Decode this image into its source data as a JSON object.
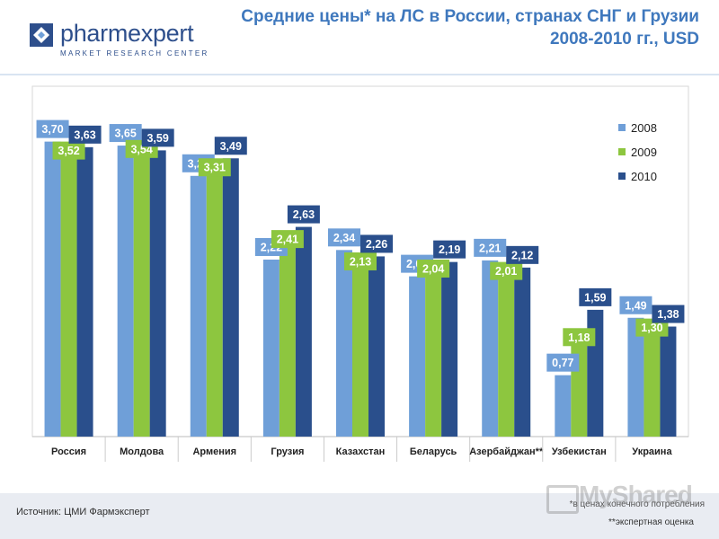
{
  "logo": {
    "name": "pharmexpert",
    "tagline": "MARKET RESEARCH CENTER"
  },
  "title": "Средние цены* на ЛС в России, странах СНГ и Грузии 2008-2010 гг., USD",
  "chart_data": {
    "type": "bar",
    "categories": [
      "Россия",
      "Молдова",
      "Армения",
      "Грузия",
      "Казахстан",
      "Беларусь",
      "Азербайджан**",
      "Узбекистан",
      "Украина"
    ],
    "series": [
      {
        "name": "2008",
        "color": "#6f9fd8",
        "values": [
          3.7,
          3.65,
          3.27,
          2.22,
          2.34,
          2.01,
          2.21,
          0.77,
          1.49
        ],
        "labels": [
          "3,70",
          "3,65",
          "3,27",
          "2,22",
          "2,34",
          "2,01",
          "2,21",
          "0,77",
          "1,49"
        ]
      },
      {
        "name": "2009",
        "color": "#8dc63f",
        "values": [
          3.52,
          3.54,
          3.31,
          2.41,
          2.13,
          2.04,
          2.01,
          1.18,
          1.3
        ],
        "labels": [
          "3,52",
          "3,54",
          "3,31",
          "2,41",
          "2,13",
          "2,04",
          "2,01",
          "1,18",
          "1,30"
        ]
      },
      {
        "name": "2010",
        "color": "#2a4f8c",
        "values": [
          3.63,
          3.59,
          3.49,
          2.63,
          2.26,
          2.19,
          2.12,
          1.59,
          1.38
        ],
        "labels": [
          "3,63",
          "3,59",
          "3,49",
          "2,63",
          "2,26",
          "2,19",
          "2,12",
          "1,59",
          "1,38"
        ]
      }
    ],
    "ylim": [
      0,
      4.0
    ],
    "grid": false,
    "legend_position": "top-right",
    "xlabel": "",
    "ylabel": ""
  },
  "footer": {
    "source": "Источник: ЦМИ Фармэксперт",
    "note1": "*в ценах конечного потребления",
    "note2": "**экспертная оценка"
  },
  "watermark": "MyShared"
}
